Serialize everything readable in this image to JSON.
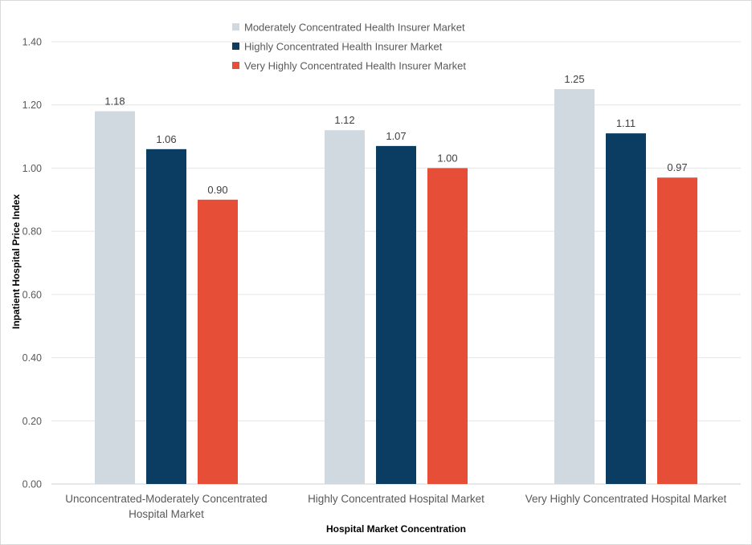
{
  "chart_data": {
    "type": "bar",
    "categories": [
      [
        "Unconcentrated-Moderately Concentrated",
        "Hospital Market"
      ],
      [
        "Highly Concentrated Hospital Market"
      ],
      [
        "Very Highly Concentrated Hospital Market"
      ]
    ],
    "series": [
      {
        "name": "Moderately Concentrated Health Insurer Market",
        "color": "#d0d8e0",
        "values": [
          1.18,
          1.12,
          1.25
        ],
        "labels": [
          "1.18",
          "1.12",
          "1.25"
        ]
      },
      {
        "name": "Highly Concentrated Health Insurer Market",
        "color": "#0b3c61",
        "values": [
          1.06,
          1.07,
          1.11
        ],
        "labels": [
          "1.06",
          "1.07",
          "1.11"
        ]
      },
      {
        "name": "Very Highly Concentrated Health Insurer Market",
        "color": "#e64e38",
        "values": [
          0.9,
          1.0,
          0.97
        ],
        "labels": [
          "0.90",
          "1.00",
          "0.97"
        ]
      }
    ],
    "xlabel": "Hospital Market Concentration",
    "ylabel": "Inpatient Hospital Price Index",
    "ylim": [
      0,
      1.4
    ],
    "yticks": [
      "0.00",
      "0.20",
      "0.40",
      "0.60",
      "0.80",
      "1.00",
      "1.20",
      "1.40"
    ],
    "grid": true,
    "legend_position": "top"
  }
}
